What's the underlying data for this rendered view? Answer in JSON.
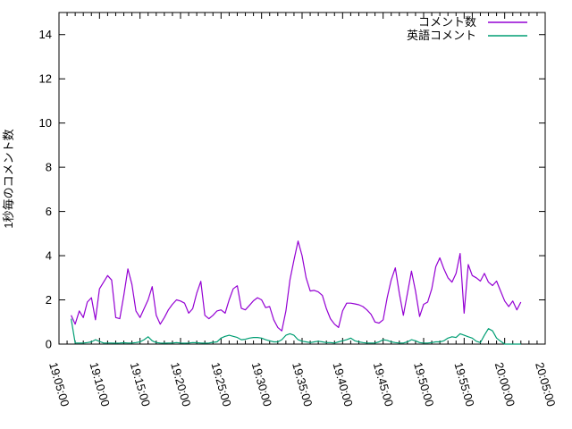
{
  "figure": {
    "background": "#ffffff",
    "border_color": "#000000",
    "text_color": "#000000"
  },
  "y_axis": {
    "label": "1秒毎のコメント数",
    "tick_labels": [
      "0",
      "2",
      "4",
      "6",
      "8",
      "10",
      "12",
      "14"
    ],
    "tick_values": [
      0,
      2,
      4,
      6,
      8,
      10,
      12,
      14
    ],
    "min": 0,
    "max": 15
  },
  "x_axis": {
    "tick_labels": [
      "19:05:00",
      "19:10:00",
      "19:15:00",
      "19:20:00",
      "19:25:00",
      "19:30:00",
      "19:35:00",
      "19:40:00",
      "19:45:00",
      "19:50:00",
      "19:55:00",
      "20:00:00",
      "20:05:00"
    ],
    "major_tick_interval_minutes": 5,
    "minor_tick_interval_minutes": 1,
    "label_rotation_deg": 74
  },
  "legend": {
    "position": "top-right",
    "items": [
      {
        "label": "コメント数",
        "color": "#9400d3"
      },
      {
        "label": "英語コメント",
        "color": "#009e73"
      }
    ]
  },
  "chart_data": {
    "type": "line",
    "title": "",
    "xlabel": "",
    "ylabel": "1秒毎のコメント数",
    "xlim": [
      "19:05:00",
      "20:05:00"
    ],
    "ylim": [
      0,
      15
    ],
    "grid": false,
    "legend_position": "top-right",
    "x": [
      "19:06:30",
      "19:07:00",
      "19:07:30",
      "19:08:00",
      "19:08:30",
      "19:09:00",
      "19:09:30",
      "19:10:00",
      "19:10:30",
      "19:11:00",
      "19:11:30",
      "19:12:00",
      "19:12:30",
      "19:13:00",
      "19:13:30",
      "19:14:00",
      "19:14:30",
      "19:15:00",
      "19:15:30",
      "19:16:00",
      "19:16:30",
      "19:17:00",
      "19:17:30",
      "19:18:00",
      "19:18:30",
      "19:19:00",
      "19:19:30",
      "19:20:00",
      "19:20:30",
      "19:21:00",
      "19:21:30",
      "19:22:00",
      "19:22:30",
      "19:23:00",
      "19:23:30",
      "19:24:00",
      "19:24:30",
      "19:25:00",
      "19:25:30",
      "19:26:00",
      "19:26:30",
      "19:27:00",
      "19:27:30",
      "19:28:00",
      "19:28:30",
      "19:29:00",
      "19:29:30",
      "19:30:00",
      "19:30:30",
      "19:31:00",
      "19:31:30",
      "19:32:00",
      "19:32:30",
      "19:33:00",
      "19:33:30",
      "19:34:00",
      "19:34:30",
      "19:35:00",
      "19:35:30",
      "19:36:00",
      "19:36:30",
      "19:37:00",
      "19:37:30",
      "19:38:00",
      "19:38:30",
      "19:39:00",
      "19:39:30",
      "19:40:00",
      "19:40:30",
      "19:41:00",
      "19:41:30",
      "19:42:00",
      "19:42:30",
      "19:43:00",
      "19:43:30",
      "19:44:00",
      "19:44:30",
      "19:45:00",
      "19:45:30",
      "19:46:00",
      "19:46:30",
      "19:47:00",
      "19:47:30",
      "19:48:00",
      "19:48:30",
      "19:49:00",
      "19:49:30",
      "19:50:00",
      "19:50:30",
      "19:51:00",
      "19:51:30",
      "19:52:00",
      "19:52:30",
      "19:53:00",
      "19:53:30",
      "19:54:00",
      "19:54:30",
      "19:55:00",
      "19:55:30",
      "19:56:00",
      "19:56:30",
      "19:57:00",
      "19:57:30",
      "19:58:00",
      "19:58:30",
      "19:59:00",
      "19:59:30",
      "20:00:00",
      "20:00:30",
      "20:01:00",
      "20:01:30",
      "20:02:00"
    ],
    "series": [
      {
        "name": "コメント数",
        "color": "#9400d3",
        "values": [
          1.3,
          0.9,
          1.5,
          1.2,
          1.9,
          2.1,
          1.1,
          2.5,
          2.8,
          3.1,
          2.9,
          1.2,
          1.15,
          2.2,
          3.4,
          2.7,
          1.5,
          1.2,
          1.6,
          2.0,
          2.6,
          1.3,
          0.9,
          1.2,
          1.55,
          1.8,
          2.0,
          1.95,
          1.85,
          1.4,
          1.6,
          2.3,
          2.84,
          1.3,
          1.15,
          1.3,
          1.5,
          1.55,
          1.4,
          2.0,
          2.5,
          2.64,
          1.62,
          1.55,
          1.75,
          1.96,
          2.1,
          2.0,
          1.65,
          1.7,
          1.1,
          0.75,
          0.6,
          1.5,
          2.9,
          3.8,
          4.66,
          4.0,
          3.0,
          2.4,
          2.43,
          2.36,
          2.2,
          1.6,
          1.15,
          0.9,
          0.75,
          1.5,
          1.85,
          1.85,
          1.82,
          1.78,
          1.7,
          1.55,
          1.35,
          1.0,
          0.95,
          1.1,
          2.1,
          2.9,
          3.45,
          2.3,
          1.3,
          2.3,
          3.3,
          2.4,
          1.25,
          1.8,
          1.9,
          2.5,
          3.5,
          3.9,
          3.4,
          3.0,
          2.8,
          3.2,
          4.1,
          1.4,
          3.6,
          3.1,
          3.0,
          2.85,
          3.2,
          2.8,
          2.65,
          2.85,
          2.4,
          1.95,
          1.7,
          1.95,
          1.55,
          1.9
        ]
      },
      {
        "name": "英語コメント",
        "color": "#009e73",
        "values": [
          1.15,
          0.05,
          0.05,
          0.05,
          0.07,
          0.1,
          0.2,
          0.12,
          0.05,
          0.05,
          0.05,
          0.04,
          0.05,
          0.06,
          0.05,
          0.05,
          0.07,
          0.1,
          0.2,
          0.33,
          0.15,
          0.07,
          0.05,
          0.04,
          0.05,
          0.05,
          0.07,
          0.05,
          0.04,
          0.05,
          0.07,
          0.06,
          0.05,
          0.04,
          0.05,
          0.08,
          0.1,
          0.27,
          0.35,
          0.4,
          0.35,
          0.3,
          0.2,
          0.22,
          0.27,
          0.3,
          0.3,
          0.27,
          0.2,
          0.15,
          0.1,
          0.1,
          0.2,
          0.4,
          0.47,
          0.4,
          0.2,
          0.13,
          0.1,
          0.07,
          0.1,
          0.13,
          0.1,
          0.07,
          0.07,
          0.05,
          0.1,
          0.15,
          0.2,
          0.27,
          0.15,
          0.1,
          0.07,
          0.05,
          0.05,
          0.05,
          0.1,
          0.2,
          0.17,
          0.1,
          0.07,
          0.05,
          0.05,
          0.1,
          0.2,
          0.15,
          0.07,
          0.05,
          0.05,
          0.07,
          0.1,
          0.1,
          0.15,
          0.27,
          0.33,
          0.3,
          0.47,
          0.4,
          0.33,
          0.27,
          0.13,
          0.07,
          0.4,
          0.7,
          0.6,
          0.27,
          0.13,
          0.0,
          0.0,
          0.0,
          0.0,
          0.0
        ]
      }
    ]
  }
}
